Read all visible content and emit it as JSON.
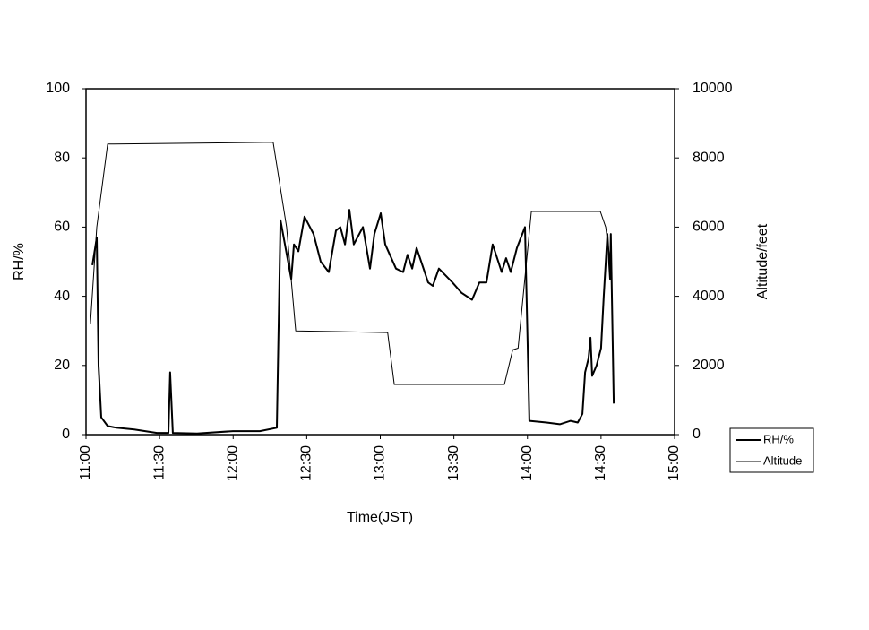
{
  "chart_data": {
    "type": "line",
    "x_label": "Time(JST)",
    "y_label": "RH/%",
    "y2_label": "Altitude/feet",
    "xlim": [
      660,
      900
    ],
    "xticks": [
      {
        "value": 660,
        "label": "11:00"
      },
      {
        "value": 690,
        "label": "11:30"
      },
      {
        "value": 720,
        "label": "12:00"
      },
      {
        "value": 750,
        "label": "12:30"
      },
      {
        "value": 780,
        "label": "13:00"
      },
      {
        "value": 810,
        "label": "13:30"
      },
      {
        "value": 840,
        "label": "14:00"
      },
      {
        "value": 870,
        "label": "14:30"
      },
      {
        "value": 900,
        "label": "15:00"
      }
    ],
    "ylim": [
      0,
      100
    ],
    "yticks": [
      0,
      20,
      40,
      60,
      80,
      100
    ],
    "y2lim": [
      0,
      10000
    ],
    "y2ticks": [
      0,
      2000,
      4000,
      6000,
      8000,
      10000
    ],
    "legend": "bottom-right-outside",
    "series": [
      {
        "name": "RH/%",
        "color": "#000000",
        "line_width": 2,
        "x": [
          662.6,
          664.4,
          665.1,
          666.2,
          668.8,
          672.4,
          679.7,
          688.9,
          693.6,
          694.3,
          695.4,
          705.3,
          719.9,
          730.9,
          737.8,
          739.3,
          743.7,
          744.8,
          746.6,
          749.1,
          752.8,
          755.7,
          759.0,
          761.9,
          763.7,
          765.6,
          767.4,
          769.2,
          772.9,
          775.8,
          777.6,
          780.2,
          782.0,
          786.4,
          789.3,
          791.1,
          793.0,
          794.8,
          799.5,
          801.4,
          803.9,
          809.4,
          813.1,
          817.4,
          820.4,
          823.3,
          825.8,
          829.5,
          831.3,
          833.2,
          835.7,
          839.0,
          840.8,
          847.8,
          853.2,
          857.6,
          860.5,
          862.4,
          863.5,
          864.9,
          865.7,
          866.4,
          868.2,
          870.0,
          871.1,
          872.6,
          873.7,
          874.0,
          875.2
        ],
        "values": [
          49,
          57,
          20,
          5,
          2.5,
          2,
          1.5,
          0.5,
          0.5,
          18,
          0.5,
          0.3,
          1,
          1,
          2,
          62,
          45,
          55,
          53,
          63,
          58,
          50,
          47,
          59,
          60,
          55,
          65,
          55,
          60,
          48,
          58,
          64,
          55,
          48,
          47,
          52,
          48,
          54,
          44,
          43,
          48,
          44,
          41,
          39,
          44,
          44,
          55,
          47,
          51,
          47,
          54,
          60,
          4,
          3.5,
          3,
          4,
          3.5,
          6,
          18,
          22,
          28,
          17,
          20,
          25,
          40,
          58,
          45,
          58,
          9
        ]
      },
      {
        "name": "Altitude",
        "color": "#000000",
        "line_width": 1,
        "axis": "y2",
        "x": [
          661.8,
          664.4,
          668.8,
          736.3,
          741.8,
          745.5,
          783.0,
          785.7,
          830.6,
          834.0,
          836.2,
          841.6,
          869.7,
          871.9,
          874.0
        ],
        "values": [
          3200,
          6000,
          8400,
          8450,
          6000,
          3000,
          2950,
          1450,
          1450,
          2450,
          2500,
          6450,
          6450,
          6000,
          4850
        ]
      }
    ]
  }
}
